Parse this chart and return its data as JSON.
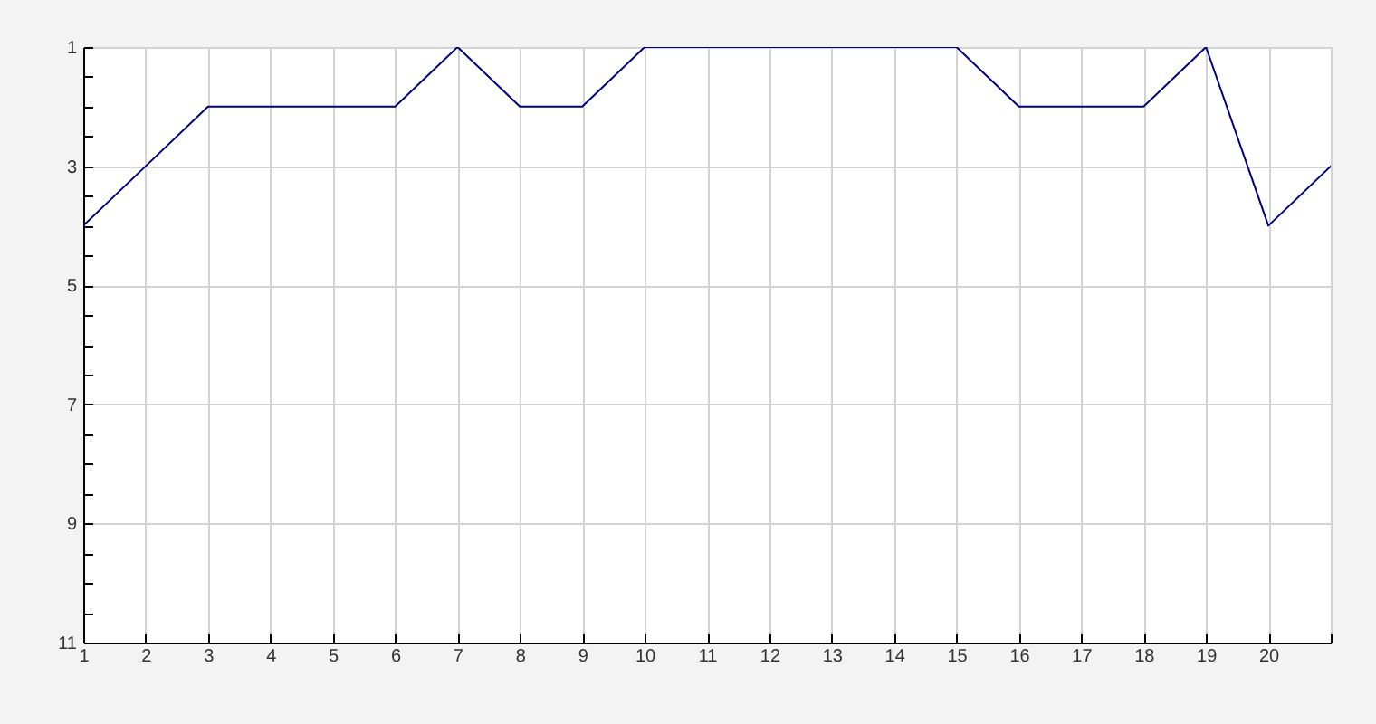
{
  "chart_data": {
    "type": "line",
    "x": [
      1,
      2,
      3,
      4,
      5,
      6,
      7,
      8,
      9,
      10,
      11,
      12,
      13,
      14,
      15,
      16,
      17,
      18,
      19,
      20,
      21
    ],
    "series": [
      {
        "color": "#000080",
        "values": [
          4,
          3,
          2,
          2,
          2,
          2,
          1,
          2,
          2,
          1,
          1,
          1,
          1,
          1,
          1,
          2,
          2,
          2,
          1,
          4,
          3
        ]
      }
    ],
    "xlim": [
      1,
      21
    ],
    "xticks": [
      1,
      2,
      3,
      4,
      5,
      6,
      7,
      8,
      9,
      10,
      11,
      12,
      13,
      14,
      15,
      16,
      17,
      18,
      19,
      20,
      {
        "value": 21,
        "label": null
      }
    ],
    "ylim": [
      11,
      1
    ],
    "yticks": [
      1,
      {
        "value": 1.5,
        "label": null
      },
      {
        "value": 2,
        "label": null
      },
      {
        "value": 2.5,
        "label": null
      },
      3,
      {
        "value": 3.5,
        "label": null
      },
      {
        "value": 4,
        "label": null
      },
      {
        "value": 4.5,
        "label": null
      },
      5,
      {
        "value": 5.5,
        "label": null
      },
      {
        "value": 6,
        "label": null
      },
      {
        "value": 6.5,
        "label": null
      },
      7,
      {
        "value": 7.5,
        "label": null
      },
      {
        "value": 8,
        "label": null
      },
      {
        "value": 8.5,
        "label": null
      },
      9,
      {
        "value": 9.5,
        "label": null
      },
      {
        "value": 10,
        "label": null
      },
      {
        "value": 10.5,
        "label": null
      },
      11
    ],
    "grid": true,
    "legend": false,
    "line_style": "solid"
  }
}
